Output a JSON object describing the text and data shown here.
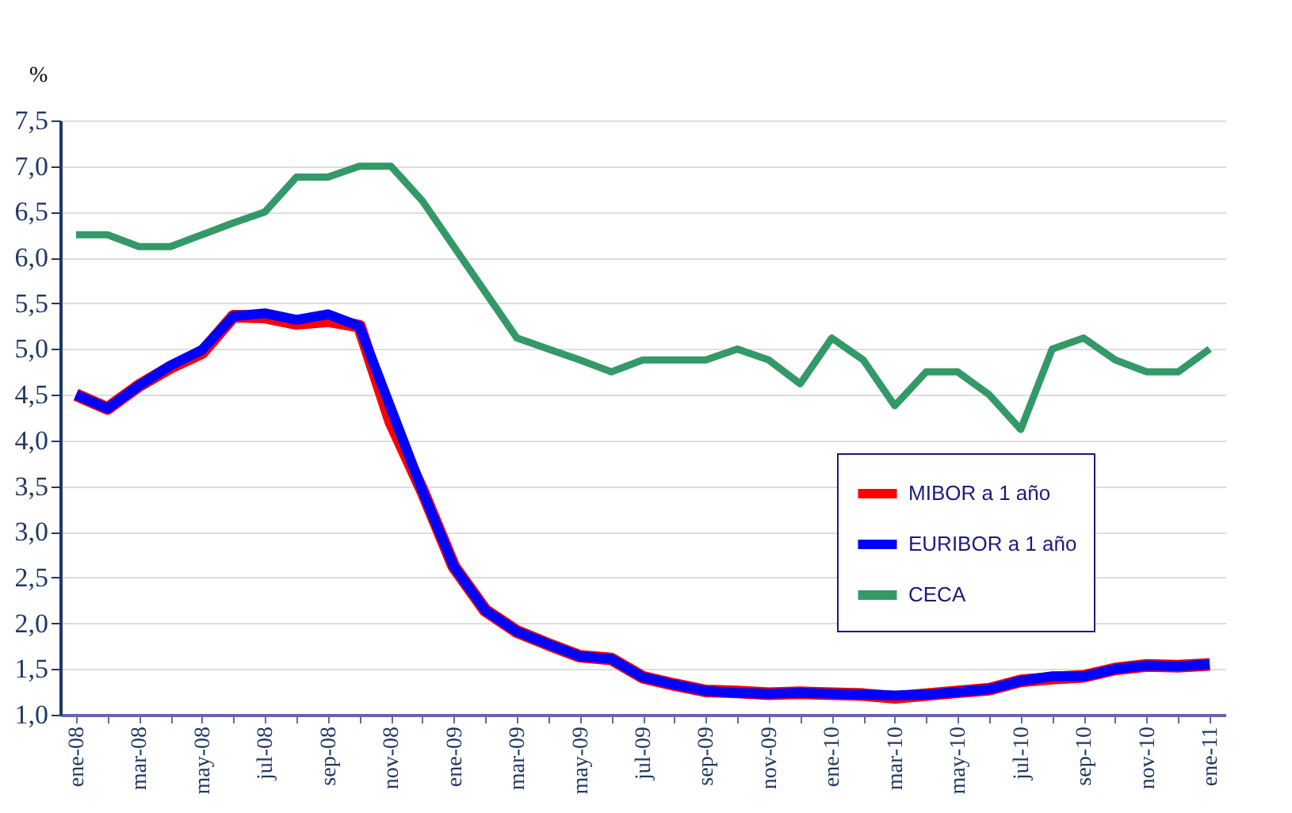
{
  "chart_data": {
    "type": "line",
    "ylabel": "%",
    "categories": [
      "ene-08",
      null,
      "mar-08",
      null,
      "may-08",
      null,
      "jul-08",
      null,
      "sep-08",
      null,
      "nov-08",
      null,
      "ene-09",
      null,
      "mar-09",
      null,
      "may-09",
      null,
      "jul-09",
      null,
      "sep-09",
      null,
      "nov-09",
      null,
      "ene-10",
      null,
      "mar-10",
      null,
      "may-10",
      null,
      "jul-10",
      null,
      "sep-10",
      null,
      "nov-10",
      null,
      "ene-11"
    ],
    "series": [
      {
        "name": "MIBOR a 1 año",
        "color": "#ff0000",
        "values": [
          4.5,
          4.35,
          4.6,
          4.8,
          4.96,
          5.36,
          5.35,
          5.28,
          5.31,
          5.25,
          4.2,
          3.45,
          2.62,
          2.14,
          1.91,
          1.77,
          1.64,
          1.61,
          1.41,
          1.33,
          1.26,
          1.25,
          1.23,
          1.24,
          1.23,
          1.22,
          1.19,
          1.22,
          1.25,
          1.28,
          1.37,
          1.4,
          1.42,
          1.5,
          1.54,
          1.53,
          1.55
        ]
      },
      {
        "name": "EURIBOR a 1 año",
        "color": "#0000ff",
        "values": [
          4.5,
          4.35,
          4.6,
          4.82,
          4.99,
          5.36,
          5.39,
          5.32,
          5.38,
          5.25,
          4.35,
          3.45,
          2.62,
          2.14,
          1.91,
          1.77,
          1.64,
          1.61,
          1.41,
          1.33,
          1.26,
          1.24,
          1.23,
          1.24,
          1.23,
          1.22,
          1.21,
          1.22,
          1.25,
          1.28,
          1.37,
          1.42,
          1.42,
          1.5,
          1.54,
          1.53,
          1.55
        ]
      },
      {
        "name": "CECA",
        "color": "#339966",
        "values": [
          6.25,
          6.25,
          6.12,
          6.12,
          6.25,
          6.38,
          6.5,
          6.88,
          6.88,
          7.0,
          7.0,
          6.62,
          6.12,
          5.62,
          5.12,
          5.0,
          4.88,
          4.75,
          4.88,
          4.88,
          4.88,
          5.0,
          4.88,
          4.62,
          5.12,
          4.88,
          4.38,
          4.75,
          4.75,
          4.5,
          4.12,
          5.0,
          5.12,
          4.88,
          4.75,
          4.75,
          5.0
        ]
      }
    ],
    "ylim": [
      1.0,
      7.5
    ],
    "yticks": [
      {
        "value": 1.0,
        "label": "1,0"
      },
      {
        "value": 1.5,
        "label": "1,5"
      },
      {
        "value": 2.0,
        "label": "2,0"
      },
      {
        "value": 2.5,
        "label": "2,5"
      },
      {
        "value": 3.0,
        "label": "3,0"
      },
      {
        "value": 3.5,
        "label": "3,5"
      },
      {
        "value": 4.0,
        "label": "4,0"
      },
      {
        "value": 4.5,
        "label": "4,5"
      },
      {
        "value": 5.0,
        "label": "5,0"
      },
      {
        "value": 5.5,
        "label": "5,5"
      },
      {
        "value": 6.0,
        "label": "6,0"
      },
      {
        "value": 6.5,
        "label": "6,5"
      },
      {
        "value": 7.0,
        "label": "7,0"
      },
      {
        "value": 7.5,
        "label": "7,5"
      }
    ],
    "grid": "y",
    "legend": "right",
    "marker": "none",
    "line_style": "solid"
  }
}
